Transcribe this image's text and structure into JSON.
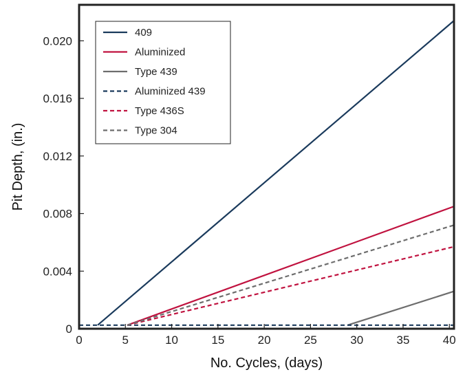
{
  "chart_data": {
    "type": "line",
    "title": "",
    "xlabel": "No. Cycles, (days)",
    "ylabel": "Pit Depth, (in.)",
    "xlim": [
      0,
      40.5
    ],
    "ylim": [
      0,
      0.0225
    ],
    "xticks": [
      0,
      5,
      10,
      15,
      20,
      25,
      30,
      35,
      40
    ],
    "xtick_labels": [
      "0",
      "5",
      "10",
      "15",
      "20",
      "25",
      "30",
      "35",
      "40"
    ],
    "yticks": [
      0,
      0.004,
      0.008,
      0.012,
      0.016,
      0.02
    ],
    "ytick_labels": [
      "0",
      "0.004",
      "0.008",
      "0.012",
      "0.016",
      "0.020"
    ],
    "grid": false,
    "legend_position": "top-left",
    "baseline_y": 0.00025,
    "series": [
      {
        "name": "409",
        "color": "#1a3a5c",
        "dash": "solid",
        "x": [
          2,
          40.5
        ],
        "y": [
          0.00025,
          0.0214
        ]
      },
      {
        "name": "Aluminized",
        "color": "#c0123f",
        "dash": "solid",
        "x": [
          5.2,
          40.5
        ],
        "y": [
          0.00025,
          0.0085
        ]
      },
      {
        "name": "Type 439",
        "color": "#6d6d6d",
        "dash": "solid",
        "x": [
          29,
          40.5
        ],
        "y": [
          0.00025,
          0.0026
        ]
      },
      {
        "name": "Aluminized 439",
        "color": "#1a3a5c",
        "dash": "dashed",
        "x": [
          0,
          40.5
        ],
        "y": [
          0.00025,
          0.00025
        ]
      },
      {
        "name": "Type 436S",
        "color": "#c0123f",
        "dash": "dashed",
        "x": [
          5.2,
          40.5
        ],
        "y": [
          0.00025,
          0.0057
        ]
      },
      {
        "name": "Type 304",
        "color": "#6d6d6d",
        "dash": "dashed",
        "x": [
          5.2,
          40.5
        ],
        "y": [
          0.00025,
          0.0072
        ]
      }
    ]
  }
}
